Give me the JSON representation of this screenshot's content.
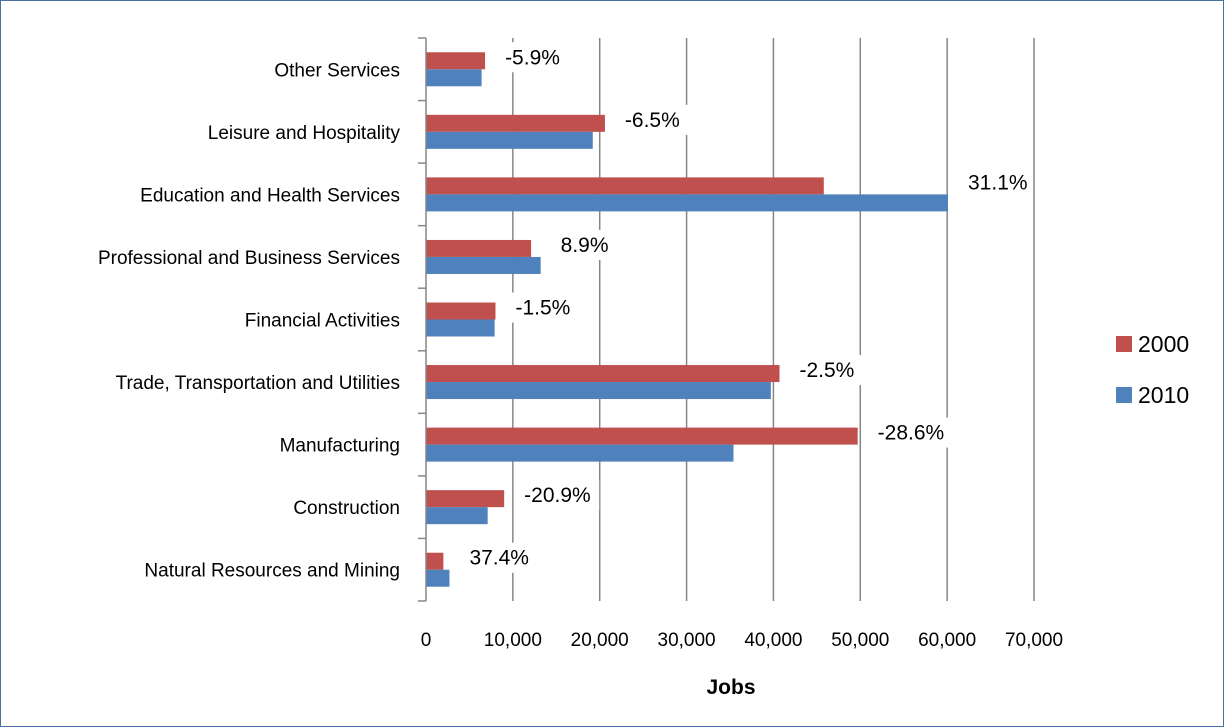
{
  "chart_data": {
    "type": "bar",
    "orientation": "horizontal",
    "title": "",
    "xlabel": "Jobs",
    "ylabel": "",
    "xlim": [
      0,
      70000
    ],
    "x_ticks": [
      0,
      10000,
      20000,
      30000,
      40000,
      50000,
      60000,
      70000
    ],
    "x_tick_labels": [
      "0",
      "10,000",
      "20,000",
      "30,000",
      "40,000",
      "50,000",
      "60,000",
      "70,000"
    ],
    "grid": "vertical",
    "legend_position": "right",
    "categories": [
      "Natural Resources and Mining",
      "Construction",
      "Manufacturing",
      "Trade, Transportation and Utilities",
      "Financial Activities",
      "Professional and Business Services",
      "Education and Health Services",
      "Leisure and Hospitality",
      "Other Services"
    ],
    "series": [
      {
        "name": "2000",
        "color": "#c0504d",
        "values": [
          2000,
          9000,
          49700,
          40700,
          8000,
          12100,
          45800,
          20600,
          6800
        ]
      },
      {
        "name": "2010",
        "color": "#4f81bd",
        "values": [
          2700,
          7100,
          35400,
          39700,
          7900,
          13200,
          60100,
          19200,
          6400
        ]
      }
    ],
    "annotations": [
      "37.4%",
      "-20.9%",
      "-28.6%",
      "-2.5%",
      "-1.5%",
      "8.9%",
      "31.1%",
      "-6.5%",
      "-5.9%"
    ]
  }
}
